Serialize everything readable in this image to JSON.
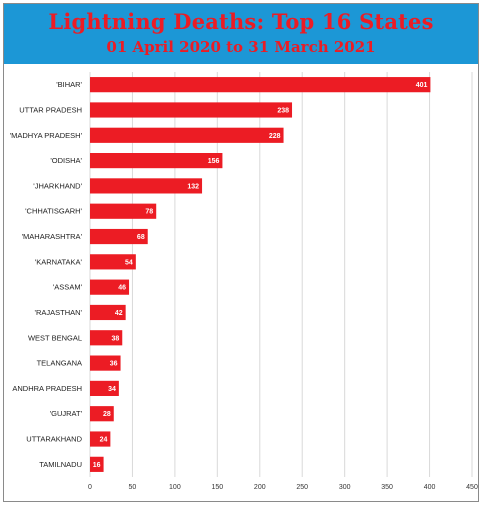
{
  "header": {
    "title": "Lightning Deaths: Top 16 States",
    "subtitle": "01 April 2020 to 31 March 2021"
  },
  "colors": {
    "header_bg": "#1c97d6",
    "title": "#ec1c24",
    "bar": "#ec1c24",
    "grid": "#d9d9d9"
  },
  "chart_data": {
    "type": "bar",
    "orientation": "horizontal",
    "title": "Lightning Deaths: Top 16 States",
    "subtitle": "01 April 2020 to 31 March 2021",
    "xlabel": "",
    "ylabel": "",
    "categories": [
      "'BIHAR'",
      "UTTAR PRADESH",
      "'MADHYA PRADESH'",
      "'ODISHA'",
      "'JHARKHAND'",
      "'CHHATISGARH'",
      "'MAHARASHTRA'",
      "'KARNATAKA'",
      "'ASSAM'",
      "'RAJASTHAN'",
      "WEST BENGAL",
      "TELANGANA",
      "ANDHRA PRADESH",
      "'GUJRAT'",
      "UTTARAKHAND",
      "TAMILNADU"
    ],
    "values": [
      401,
      238,
      228,
      156,
      132,
      78,
      68,
      54,
      46,
      42,
      38,
      36,
      34,
      28,
      24,
      16
    ],
    "data_labels": [
      "401",
      "238",
      "228",
      "156",
      "132",
      "78",
      "68",
      "54",
      "46",
      "42",
      "38",
      "36",
      "34",
      "28",
      "24",
      "16"
    ],
    "xlim": [
      0,
      450
    ],
    "xticks": [
      0,
      50,
      100,
      150,
      200,
      250,
      300,
      350,
      400,
      450
    ],
    "xtick_labels": [
      "0",
      "50",
      "100",
      "150",
      "200",
      "250",
      "300",
      "350",
      "400",
      "450"
    ],
    "grid": true,
    "legend": "none"
  }
}
